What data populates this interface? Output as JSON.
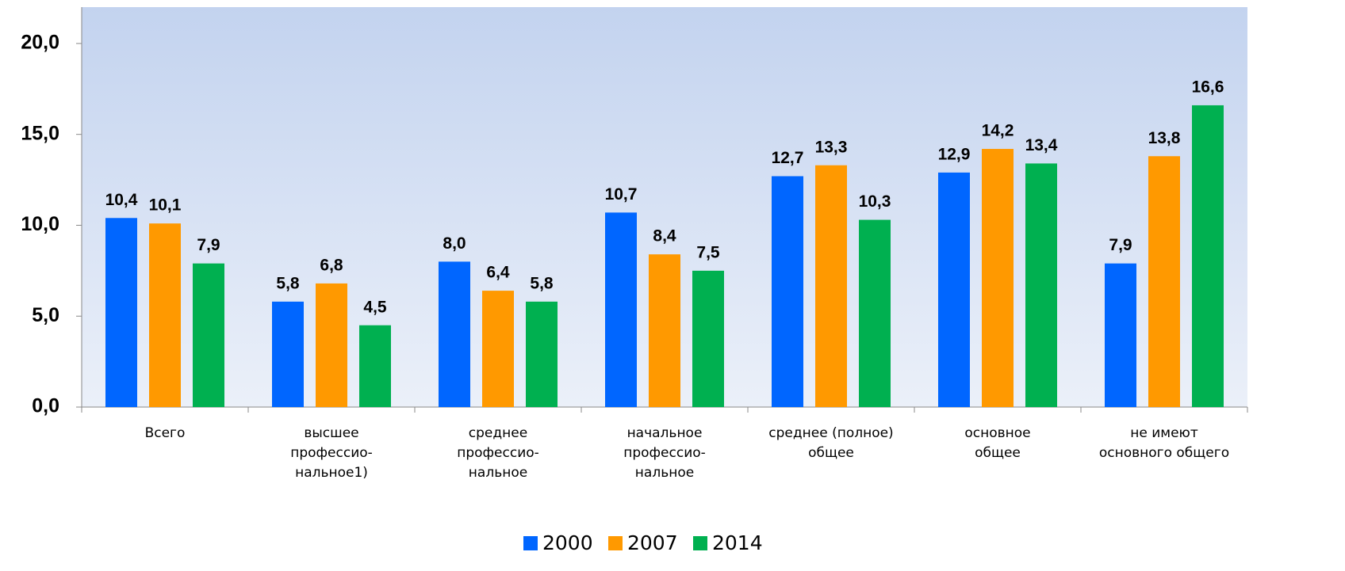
{
  "chart_data": {
    "type": "bar",
    "categories": [
      "Всего",
      "высшее\nпрофессио-\nнальное1)",
      "среднее\nпрофессио-\nнальное",
      "начальное\nпрофессио-\nнальное",
      "среднее (полное)\nобщее",
      "основное\nобщее",
      "не имеют\nосновного общего"
    ],
    "series": [
      {
        "name": "2000",
        "color": "#0066ff",
        "values": [
          10.4,
          5.8,
          8.0,
          10.7,
          12.7,
          12.9,
          7.9
        ],
        "value_labels": [
          "10,4",
          "5,8",
          "8,0",
          "10,7",
          "12,7",
          "12,9",
          "7,9"
        ]
      },
      {
        "name": "2007",
        "color": "#ff9900",
        "values": [
          10.1,
          6.8,
          6.4,
          8.4,
          13.3,
          14.2,
          13.8
        ],
        "value_labels": [
          "10,1",
          "6,8",
          "6,4",
          "8,4",
          "13,3",
          "14,2",
          "13,8"
        ]
      },
      {
        "name": "2014",
        "color": "#00b050",
        "values": [
          7.9,
          4.5,
          5.8,
          7.5,
          10.3,
          13.4,
          16.6
        ],
        "value_labels": [
          "7,9",
          "4,5",
          "5,8",
          "7,5",
          "10,3",
          "13,4",
          "16,6"
        ]
      }
    ],
    "ylim": [
      0,
      22
    ],
    "yticks": [
      {
        "value": 0,
        "label": "0,0"
      },
      {
        "value": 5,
        "label": "5,0"
      },
      {
        "value": 10,
        "label": "10,0"
      },
      {
        "value": 15,
        "label": "15,0"
      },
      {
        "value": 20,
        "label": "20,0"
      }
    ],
    "legend": "bottom"
  }
}
